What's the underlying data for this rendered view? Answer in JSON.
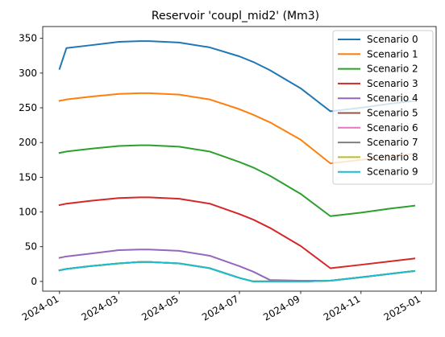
{
  "chart_data": {
    "type": "line",
    "title": "Reservoir 'coupl_mid2' (Mm3)",
    "xlabel": "",
    "ylabel": "",
    "x_ticks": [
      "2024-01",
      "2024-03",
      "2024-05",
      "2024-07",
      "2024-09",
      "2024-11",
      "2025-01"
    ],
    "x_tick_dates": [
      "2024-01-01",
      "2024-03-01",
      "2024-05-01",
      "2024-07-01",
      "2024-09-01",
      "2024-11-01",
      "2025-01-01"
    ],
    "xlim": [
      "2023-12-15",
      "2025-01-16"
    ],
    "y_ticks": [
      0,
      50,
      100,
      150,
      200,
      250,
      300,
      350
    ],
    "ylim": [
      -14,
      367
    ],
    "grid": false,
    "legend_position": "top-right",
    "x": [
      "2024-01-01",
      "2024-01-08",
      "2024-02-01",
      "2024-03-01",
      "2024-03-22",
      "2024-04-01",
      "2024-05-01",
      "2024-06-01",
      "2024-07-01",
      "2024-07-15",
      "2024-08-01",
      "2024-09-01",
      "2024-10-01",
      "2024-11-01",
      "2024-12-01",
      "2024-12-25"
    ],
    "series": [
      {
        "name": "Scenario 0",
        "color": "#1f77b4",
        "values": [
          306,
          336,
          340,
          345,
          346,
          346,
          344,
          337,
          324,
          316,
          304,
          278,
          245,
          250,
          256,
          260
        ]
      },
      {
        "name": "Scenario 1",
        "color": "#ff7f0e",
        "values": [
          260,
          262,
          266,
          270,
          271,
          271,
          269,
          262,
          248,
          240,
          229,
          204,
          170,
          175,
          180,
          184
        ]
      },
      {
        "name": "Scenario 2",
        "color": "#2ca02c",
        "values": [
          185,
          187,
          191,
          195,
          196,
          196,
          194,
          187,
          172,
          164,
          152,
          126,
          94,
          99,
          105,
          109
        ]
      },
      {
        "name": "Scenario 3",
        "color": "#d62728",
        "values": [
          110,
          112,
          116,
          120,
          121,
          121,
          119,
          112,
          97,
          89,
          77,
          51,
          19,
          24,
          29,
          33
        ]
      },
      {
        "name": "Scenario 4",
        "color": "#9467bd",
        "values": [
          34,
          36,
          40,
          45,
          46,
          46,
          44,
          37,
          22,
          14,
          2,
          1,
          1,
          6,
          11,
          15
        ]
      },
      {
        "name": "Scenario 5",
        "color": "#8c564b",
        "values": [
          16,
          18,
          22,
          26,
          28,
          28,
          26,
          19,
          5,
          0,
          0,
          0,
          1,
          6,
          11,
          15
        ]
      },
      {
        "name": "Scenario 6",
        "color": "#e377c2",
        "values": [
          16,
          18,
          22,
          26,
          28,
          28,
          26,
          19,
          5,
          0,
          0,
          0,
          1,
          6,
          11,
          15
        ]
      },
      {
        "name": "Scenario 7",
        "color": "#7f7f7f",
        "values": [
          16,
          18,
          22,
          26,
          28,
          28,
          26,
          19,
          5,
          0,
          0,
          0,
          1,
          6,
          11,
          15
        ]
      },
      {
        "name": "Scenario 8",
        "color": "#bcbd22",
        "values": [
          16,
          18,
          22,
          26,
          28,
          28,
          26,
          19,
          5,
          0,
          0,
          0,
          1,
          6,
          11,
          15
        ]
      },
      {
        "name": "Scenario 9",
        "color": "#17becf",
        "values": [
          16,
          18,
          22,
          26,
          28,
          28,
          26,
          19,
          5,
          0,
          0,
          0,
          1,
          6,
          11,
          15
        ]
      }
    ]
  }
}
